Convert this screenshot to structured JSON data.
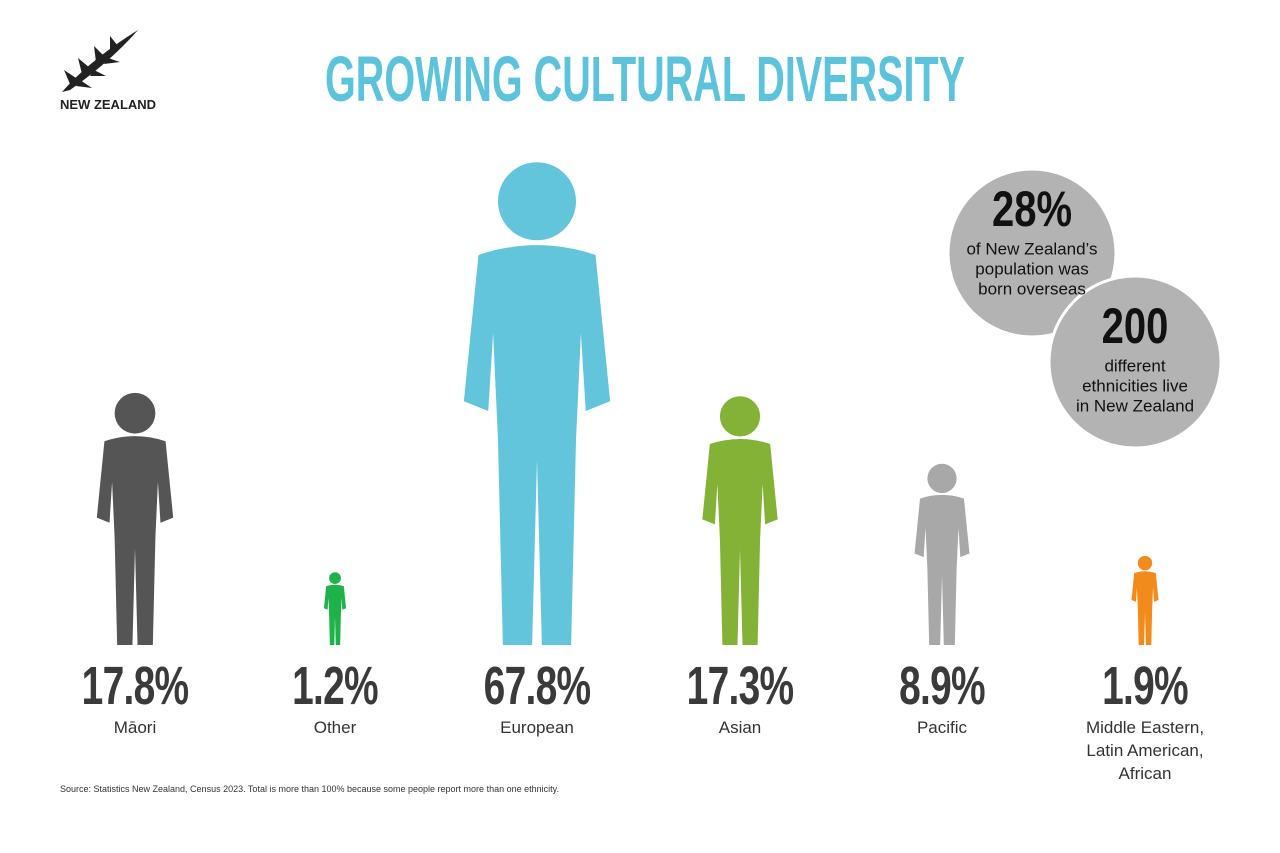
{
  "logo_text": "NEW ZEALAND",
  "chart_data": {
    "type": "pictogram",
    "title": "GROWING CULTURAL DIVERSITY",
    "categories": [
      "Māori",
      "Other",
      "European",
      "Asian",
      "Pacific",
      "Middle Eastern, Latin American, African"
    ],
    "values": [
      17.8,
      1.2,
      67.8,
      17.3,
      8.9,
      1.9
    ],
    "value_labels": [
      "17.8%",
      "1.2%",
      "67.8%",
      "17.3%",
      "8.9%",
      "1.9%"
    ],
    "colors": [
      "#555555",
      "#1db34a",
      "#62c5dc",
      "#84b236",
      "#a8a8a8",
      "#f28a1c"
    ]
  },
  "callouts": [
    {
      "figure": "28%",
      "text_lines": [
        "of New Zealand’s",
        "population was",
        "born overseas"
      ]
    },
    {
      "figure": "200",
      "text_lines": [
        "different",
        "ethnicities live",
        "in New Zealand"
      ]
    }
  ],
  "source": "Source: Statistics New Zealand, Census 2023. Total is more than 100% because some people report more than one ethnicity."
}
